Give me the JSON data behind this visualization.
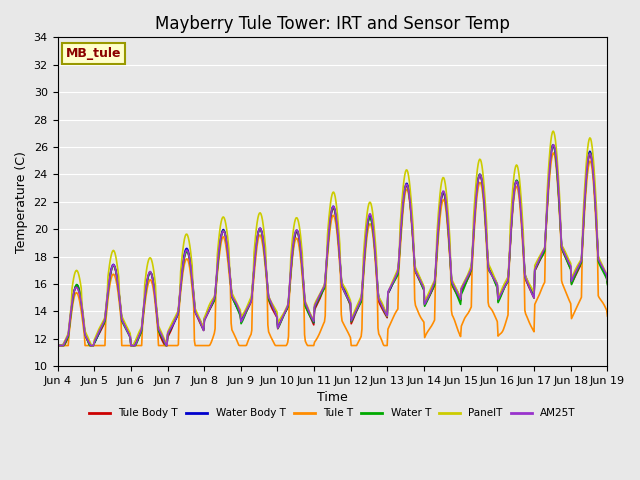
{
  "title": "Mayberry Tule Tower: IRT and Sensor Temp",
  "xlabel": "Time",
  "ylabel": "Temperature (C)",
  "ylim": [
    10,
    34
  ],
  "yticks": [
    10,
    12,
    14,
    16,
    18,
    20,
    22,
    24,
    26,
    28,
    30,
    32,
    34
  ],
  "x_tick_labels": [
    "Jun 4",
    "Jun 5",
    "Jun 6",
    "Jun 7",
    "Jun 8",
    "Jun 9",
    "Jun 10",
    "Jun 11",
    "Jun 12",
    "Jun 13",
    "Jun 14",
    "Jun 15",
    "Jun 16",
    "Jun 17",
    "Jun 18",
    "Jun 19"
  ],
  "x_tick_positions": [
    0,
    1,
    2,
    3,
    4,
    5,
    6,
    7,
    8,
    9,
    10,
    11,
    12,
    13,
    14,
    15
  ],
  "legend_label": "MB_tule",
  "legend_label_color": "#8B0000",
  "legend_box_facecolor": "#FFFFCC",
  "legend_box_edgecolor": "#999900",
  "series": [
    {
      "label": "Tule Body T",
      "color": "#CC0000",
      "lw": 1.2
    },
    {
      "label": "Water Body T",
      "color": "#0000CC",
      "lw": 1.2
    },
    {
      "label": "Tule T",
      "color": "#FF8C00",
      "lw": 1.2
    },
    {
      "label": "Water T",
      "color": "#00AA00",
      "lw": 1.2
    },
    {
      "label": "PanelT",
      "color": "#CCCC00",
      "lw": 1.2
    },
    {
      "label": "AM25T",
      "color": "#9933CC",
      "lw": 1.2
    }
  ],
  "bg_color": "#E8E8E8",
  "grid_color": "#FFFFFF",
  "fig_bg_color": "#E8E8E8",
  "title_fontsize": 12,
  "axis_label_fontsize": 9,
  "tick_fontsize": 8
}
